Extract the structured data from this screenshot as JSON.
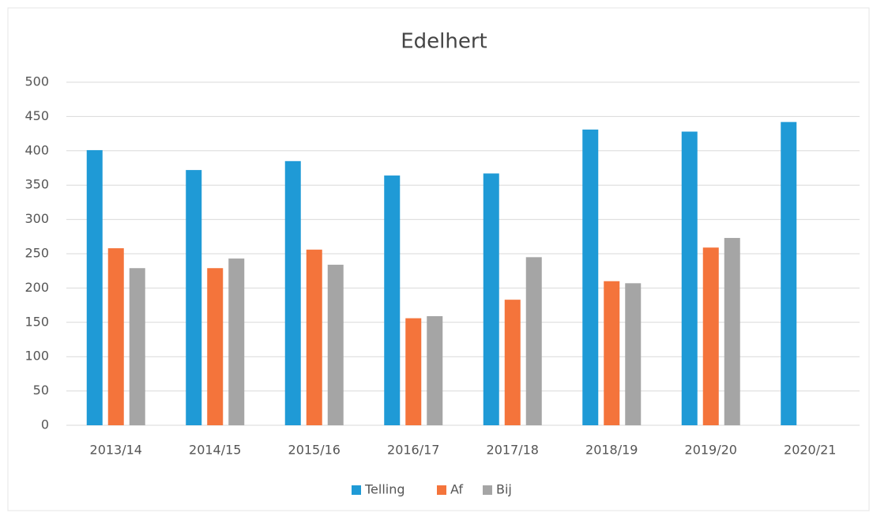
{
  "chart_data": {
    "type": "bar",
    "title": "Edelhert",
    "categories": [
      "2013/14",
      "2014/15",
      "2015/16",
      "2016/17",
      "2017/18",
      "2018/19",
      "2019/20",
      "2020/21"
    ],
    "series": [
      {
        "name": "Telling",
        "color": "#1f9ad6",
        "values": [
          401,
          372,
          385,
          364,
          367,
          431,
          428,
          442
        ]
      },
      {
        "name": "Af",
        "color": "#f4743b",
        "values": [
          258,
          229,
          256,
          156,
          183,
          210,
          259,
          null
        ]
      },
      {
        "name": "Bij",
        "color": "#a5a5a5",
        "values": [
          229,
          243,
          234,
          159,
          245,
          207,
          273,
          null
        ]
      }
    ],
    "ylim": [
      0,
      500
    ],
    "yticks": [
      0,
      50,
      100,
      150,
      200,
      250,
      300,
      350,
      400,
      450,
      500
    ],
    "grid": true,
    "legend": "bottom"
  }
}
